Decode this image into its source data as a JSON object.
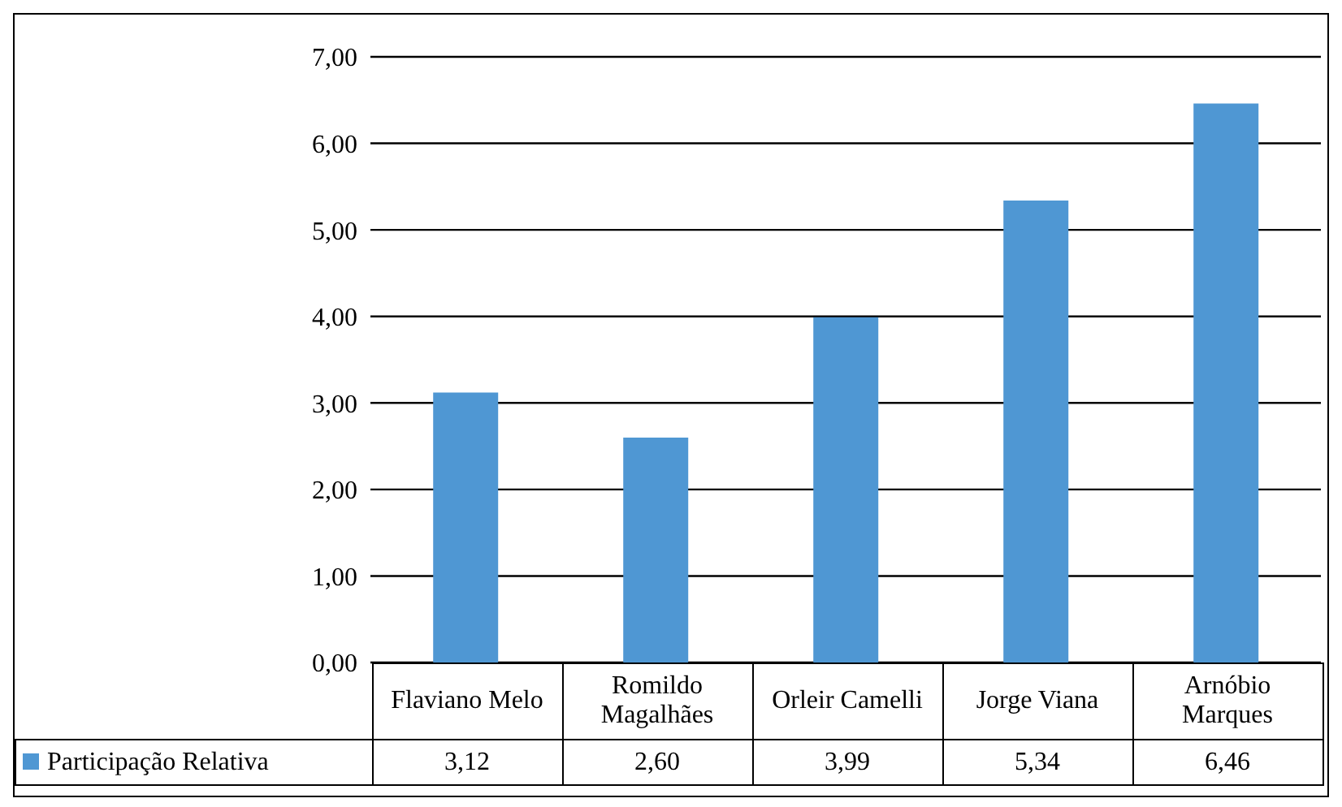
{
  "chart_data": {
    "type": "bar",
    "categories": [
      "Flaviano Melo",
      "Romildo Magalhães",
      "Orleir Camelli",
      "Jorge Viana",
      "Arnóbio Marques"
    ],
    "series": [
      {
        "name": "Participação Relativa",
        "color": "#4f97d3",
        "values": [
          3.12,
          2.6,
          3.99,
          5.34,
          6.46
        ],
        "value_labels": [
          "3,12",
          "2,60",
          "3,99",
          "5,34",
          "6,46"
        ]
      }
    ],
    "ylim": [
      0,
      7
    ],
    "yticks": [
      {
        "value": 0,
        "label": "0,00"
      },
      {
        "value": 1,
        "label": "1,00"
      },
      {
        "value": 2,
        "label": "2,00"
      },
      {
        "value": 3,
        "label": "3,00"
      },
      {
        "value": 4,
        "label": "4,00"
      },
      {
        "value": 5,
        "label": "5,00"
      },
      {
        "value": 6,
        "label": "6,00"
      },
      {
        "value": 7,
        "label": "7,00"
      }
    ],
    "grid": "y",
    "legend": "bottom"
  }
}
